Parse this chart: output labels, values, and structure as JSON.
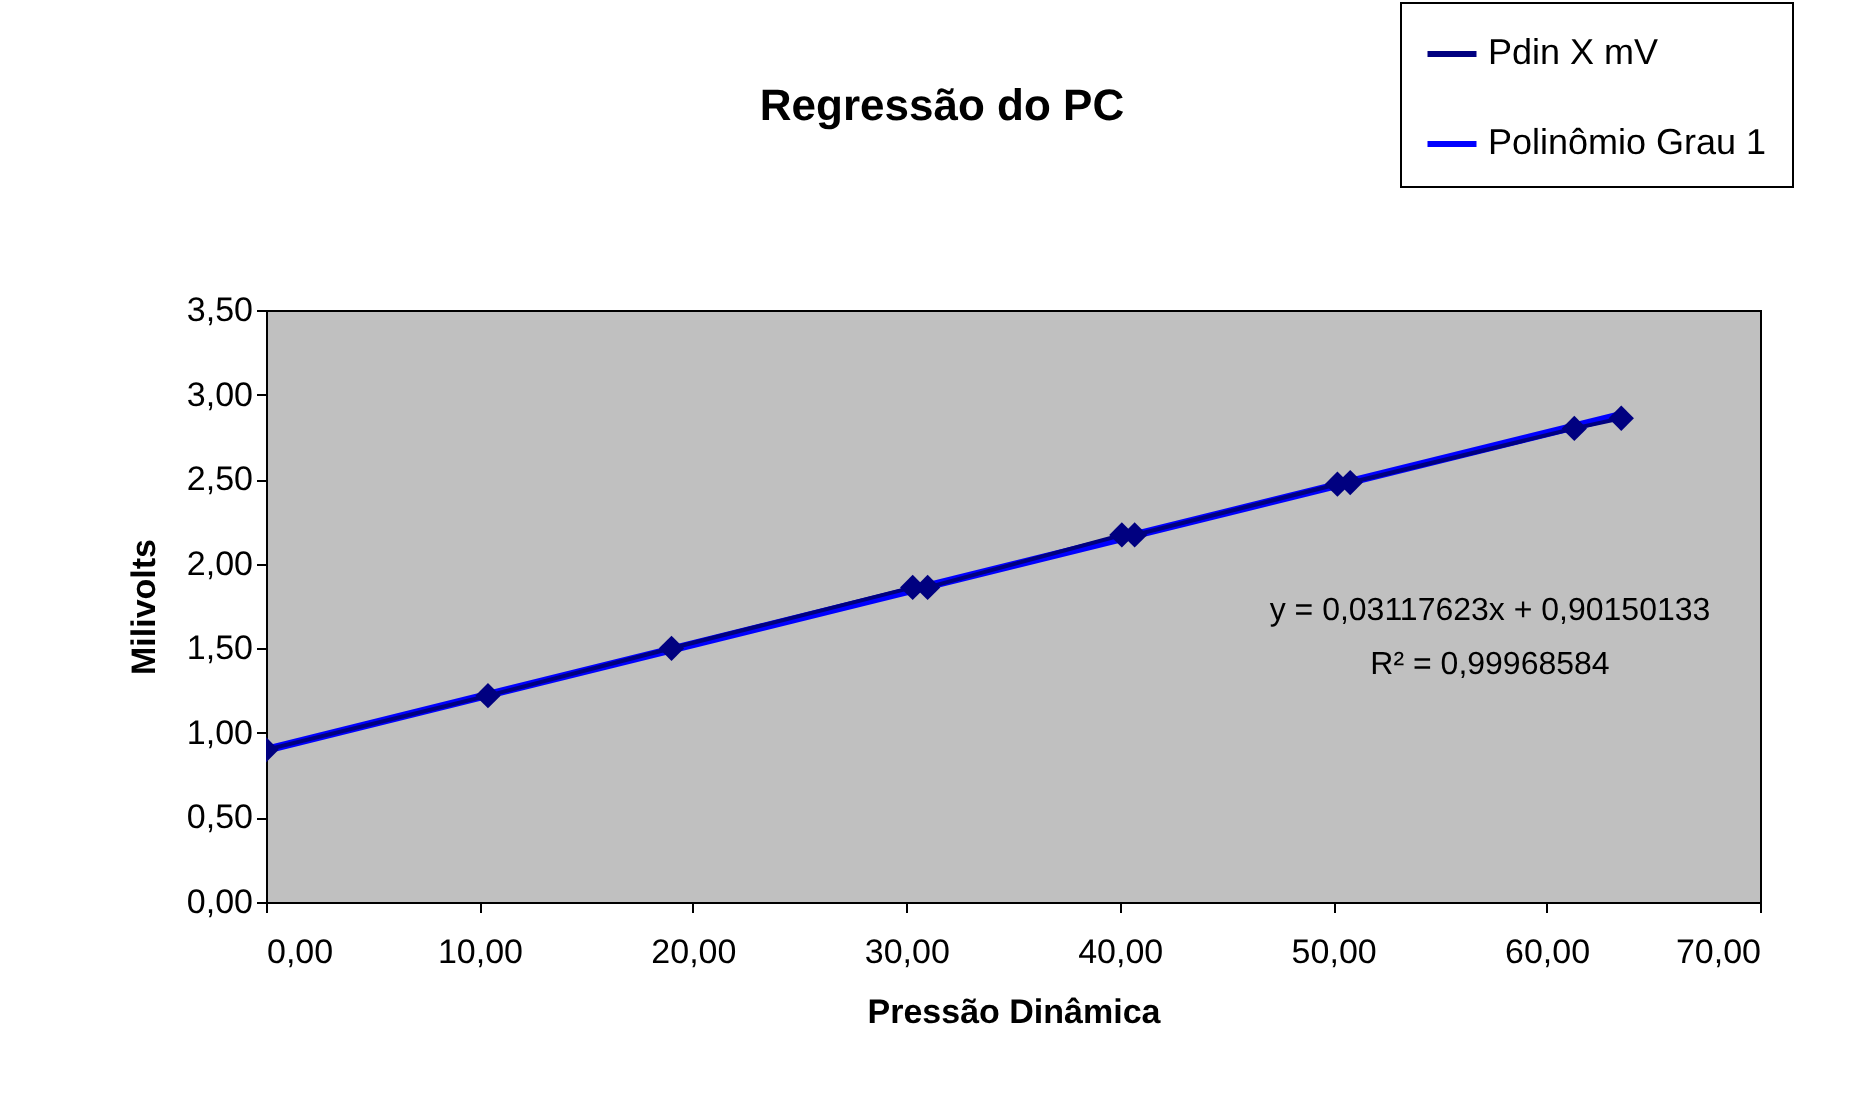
{
  "chart_data": {
    "type": "line",
    "title": "Regressão do PC",
    "xlabel": "Pressão Dinâmica",
    "ylabel": "Milivolts",
    "series": [
      {
        "name": "Pdin X mV",
        "color": "#000080",
        "marker": "diamond",
        "x": [
          0,
          10.4,
          19.0,
          30.3,
          31.0,
          40.1,
          40.7,
          50.2,
          50.8,
          61.3,
          63.5
        ],
        "values": [
          0.9,
          1.22,
          1.5,
          1.86,
          1.86,
          2.17,
          2.17,
          2.47,
          2.48,
          2.8,
          2.86
        ]
      },
      {
        "name": "Polinômio Grau 1",
        "color": "#0000ff",
        "marker": "none",
        "x": [
          0,
          63.5
        ],
        "values": [
          0.9,
          2.88
        ]
      }
    ],
    "xlim": [
      0,
      70
    ],
    "ylim": [
      0,
      3.5
    ],
    "xticks": [
      {
        "value": 0,
        "label": "0,00"
      },
      {
        "value": 10,
        "label": "10,00"
      },
      {
        "value": 20,
        "label": "20,00"
      },
      {
        "value": 30,
        "label": "30,00"
      },
      {
        "value": 40,
        "label": "40,00"
      },
      {
        "value": 50,
        "label": "50,00"
      },
      {
        "value": 60,
        "label": "60,00"
      },
      {
        "value": 70,
        "label": "70,00"
      }
    ],
    "yticks": [
      {
        "value": 0,
        "label": "0,00"
      },
      {
        "value": 0.5,
        "label": "0,50"
      },
      {
        "value": 1,
        "label": "1,00"
      },
      {
        "value": 1.5,
        "label": "1,50"
      },
      {
        "value": 2,
        "label": "2,00"
      },
      {
        "value": 2.5,
        "label": "2,50"
      },
      {
        "value": 3,
        "label": "3,00"
      },
      {
        "value": 3.5,
        "label": "3,50"
      }
    ],
    "annotations": [
      "y = 0,03117623x + 0,90150133",
      "R² = 0,99968584"
    ],
    "legend": "top right",
    "grid": false
  }
}
